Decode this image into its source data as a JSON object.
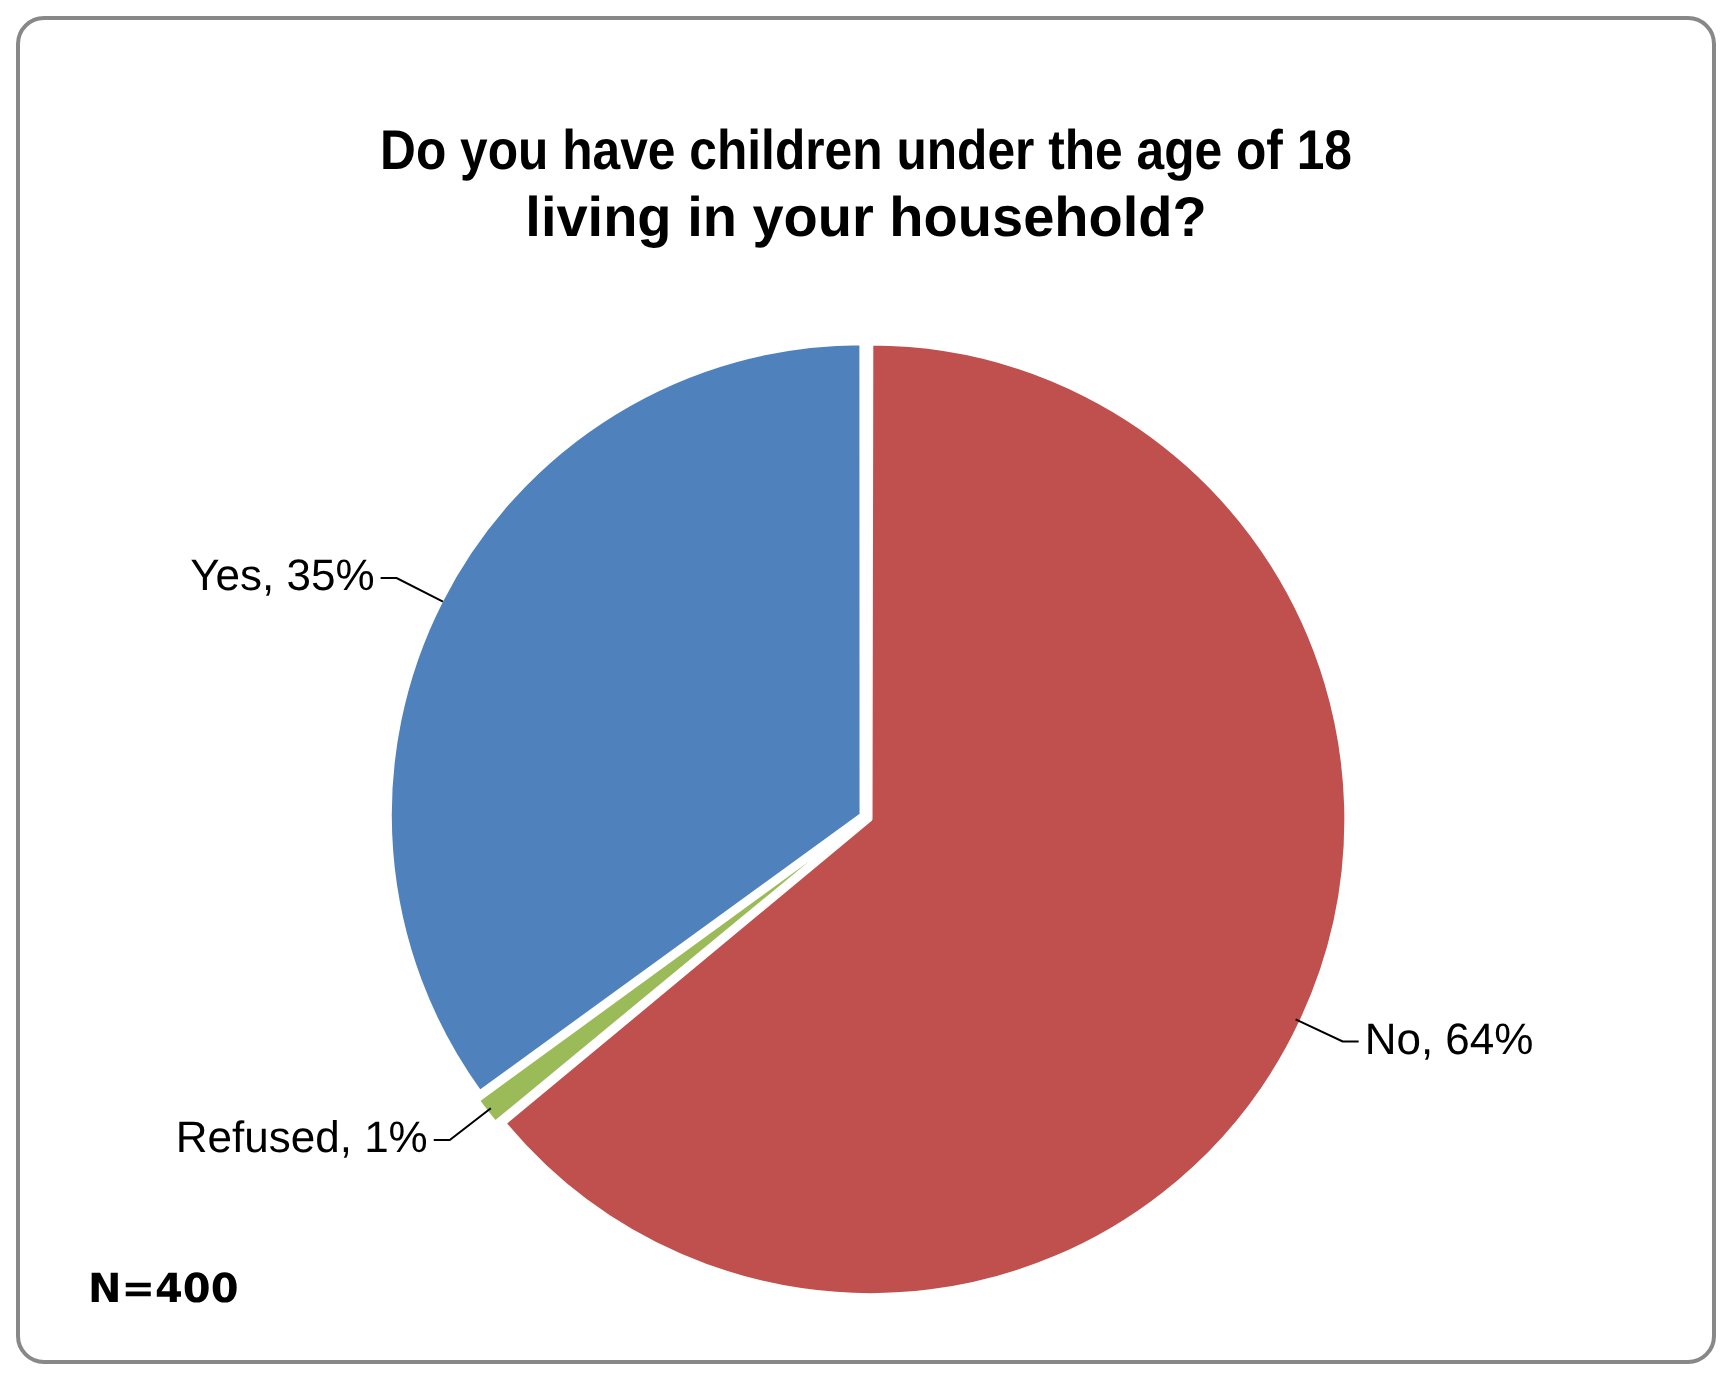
{
  "chart_data": {
    "type": "pie",
    "title": "Do you have children under the age of 18 living in your household?",
    "categories": [
      null,
      null,
      null
    ],
    "values": [
      64,
      1,
      35
    ],
    "value_labels": [
      "No, 64%",
      "Refused, 1%",
      "Yes, 35%"
    ],
    "colors": [
      "#c0504d",
      "#9bbb59",
      "#4f81bd"
    ],
    "legend": false,
    "annotations": [
      "N=400"
    ]
  }
}
